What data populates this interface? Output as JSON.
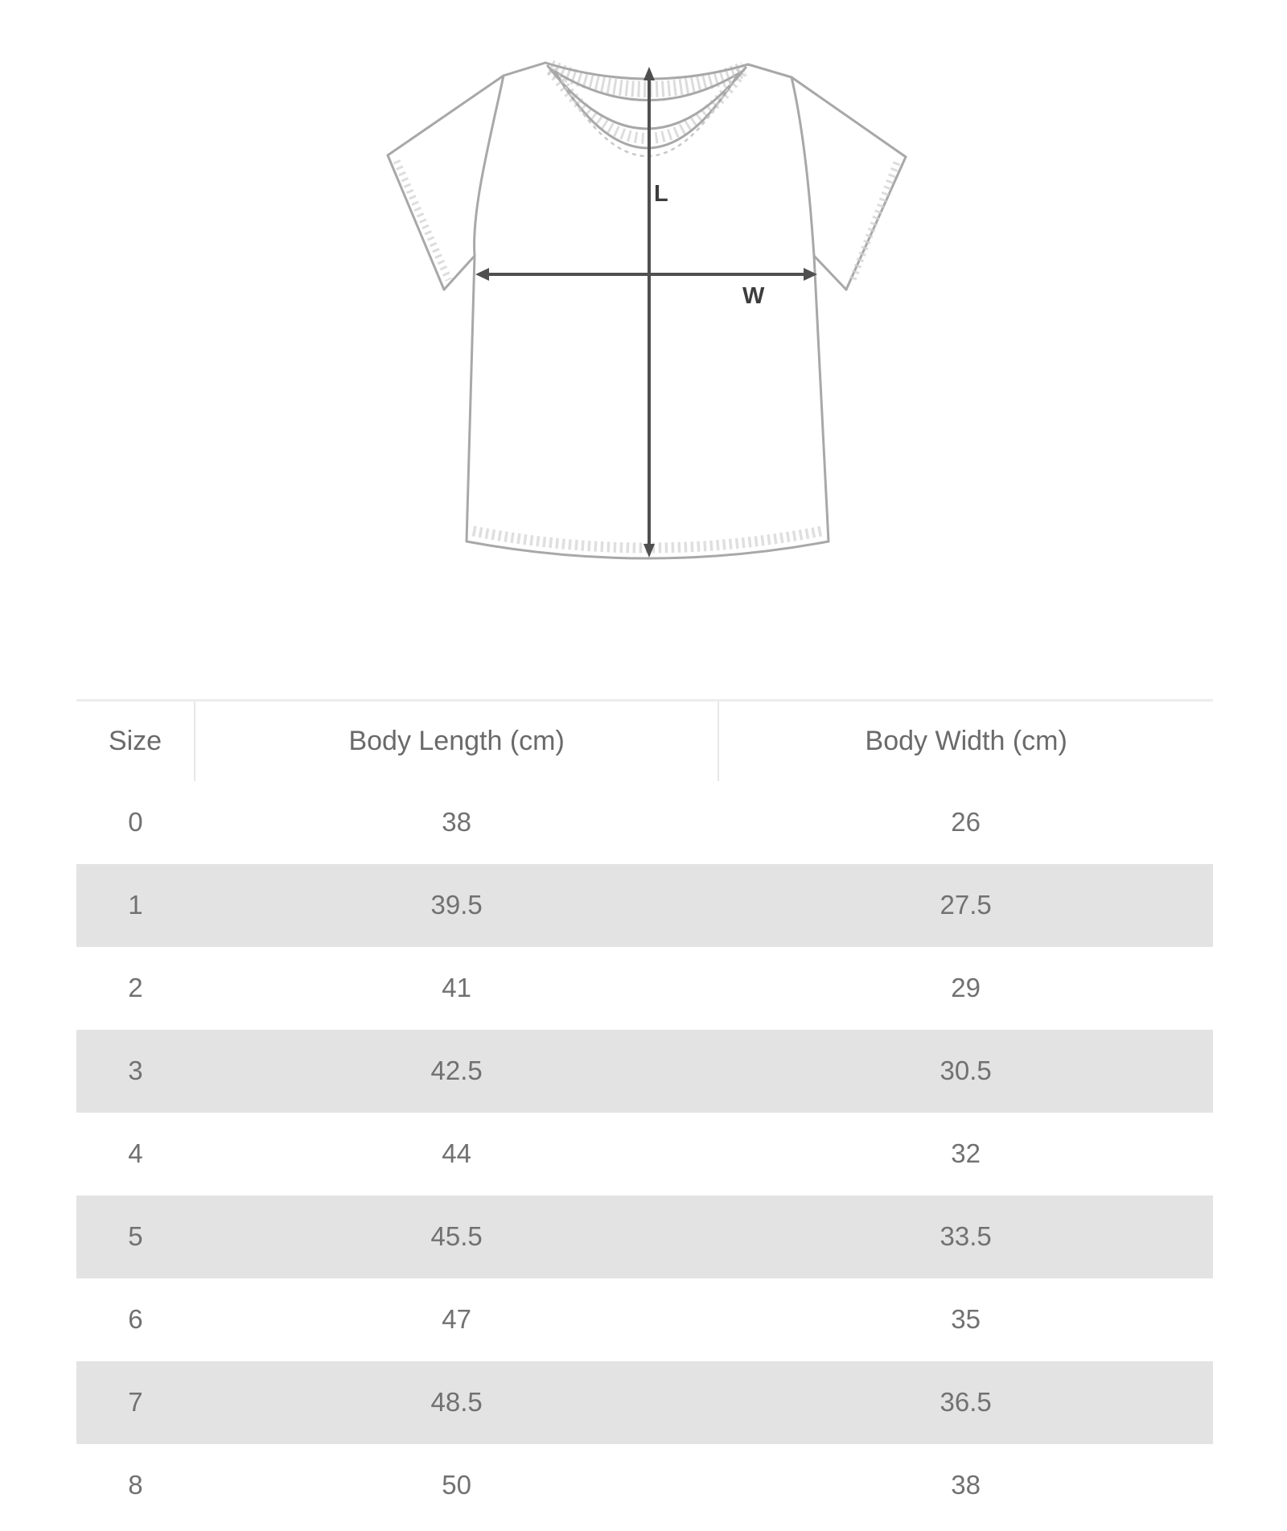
{
  "diagram": {
    "length_label": "L",
    "width_label": "W"
  },
  "size_chart": {
    "columns": [
      "Size",
      "Body Length (cm)",
      "Body Width (cm)"
    ],
    "rows": [
      [
        "0",
        "38",
        "26"
      ],
      [
        "1",
        "39.5",
        "27.5"
      ],
      [
        "2",
        "41",
        "29"
      ],
      [
        "3",
        "42.5",
        "30.5"
      ],
      [
        "4",
        "44",
        "32"
      ],
      [
        "5",
        "45.5",
        "33.5"
      ],
      [
        "6",
        "47",
        "35"
      ],
      [
        "7",
        "48.5",
        "36.5"
      ],
      [
        "8",
        "50",
        "38"
      ]
    ]
  },
  "colors": {
    "striped_row": "#e3e3e3",
    "table_border": "#ececec",
    "header_text": "#6a6a6a",
    "cell_text": "#717171",
    "shirt_outline": "#a8a8a8",
    "stitching": "#c9c9c9",
    "measure_arrow": "#4f4f4f",
    "measure_label": "#3d3d3d"
  }
}
